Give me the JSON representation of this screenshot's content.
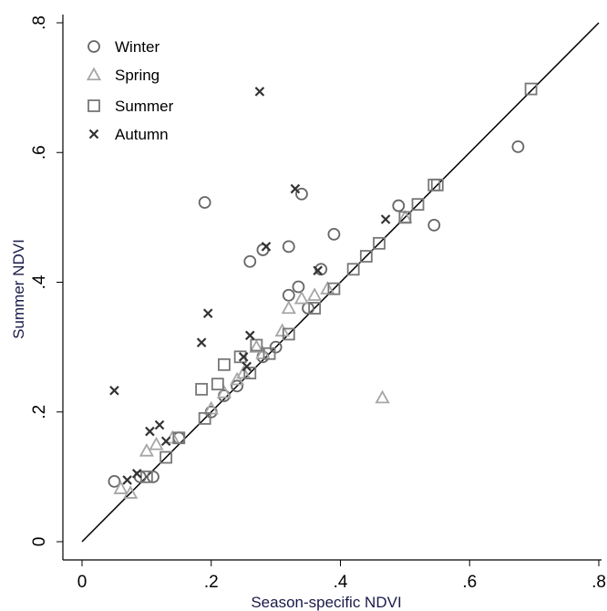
{
  "chart_data": {
    "type": "scatter",
    "xlabel": "Season-specific NDVI",
    "ylabel": "Summer NDVI",
    "xlim": [
      0,
      0.8
    ],
    "ylim": [
      0,
      0.8
    ],
    "x_ticks": [
      {
        "value": 0,
        "label": "0"
      },
      {
        "value": 0.2,
        "label": ".2"
      },
      {
        "value": 0.4,
        "label": ".4"
      },
      {
        "value": 0.6,
        "label": ".6"
      },
      {
        "value": 0.8,
        "label": ".8"
      }
    ],
    "y_ticks": [
      {
        "value": 0,
        "label": "0"
      },
      {
        "value": 0.2,
        "label": ".2"
      },
      {
        "value": 0.4,
        "label": ".4"
      },
      {
        "value": 0.6,
        "label": ".6"
      },
      {
        "value": 0.8,
        "label": ".8"
      }
    ],
    "grid": false,
    "legend_position": "top-left",
    "reference_line": {
      "from": [
        0,
        0
      ],
      "to": [
        0.8,
        0.8
      ],
      "color": "#000000"
    },
    "series": [
      {
        "name": "Winter",
        "marker": "circle",
        "color": "#666666",
        "points": [
          [
            0.05,
            0.093
          ],
          [
            0.19,
            0.523
          ],
          [
            0.26,
            0.432
          ],
          [
            0.28,
            0.45
          ],
          [
            0.32,
            0.455
          ],
          [
            0.335,
            0.393
          ],
          [
            0.34,
            0.536
          ],
          [
            0.39,
            0.474
          ],
          [
            0.49,
            0.518
          ],
          [
            0.545,
            0.488
          ],
          [
            0.675,
            0.609
          ],
          [
            0.32,
            0.38
          ],
          [
            0.37,
            0.42
          ],
          [
            0.35,
            0.36
          ],
          [
            0.3,
            0.3
          ],
          [
            0.24,
            0.24
          ],
          [
            0.2,
            0.2
          ],
          [
            0.11,
            0.1
          ],
          [
            0.09,
            0.1
          ],
          [
            0.15,
            0.16
          ],
          [
            0.22,
            0.225
          ],
          [
            0.28,
            0.285
          ]
        ]
      },
      {
        "name": "Spring",
        "marker": "triangle",
        "color": "#a6a6a6",
        "points": [
          [
            0.06,
            0.082
          ],
          [
            0.075,
            0.075
          ],
          [
            0.1,
            0.14
          ],
          [
            0.115,
            0.15
          ],
          [
            0.14,
            0.16
          ],
          [
            0.2,
            0.205
          ],
          [
            0.22,
            0.23
          ],
          [
            0.24,
            0.25
          ],
          [
            0.28,
            0.29
          ],
          [
            0.31,
            0.325
          ],
          [
            0.32,
            0.36
          ],
          [
            0.34,
            0.375
          ],
          [
            0.36,
            0.38
          ],
          [
            0.38,
            0.39
          ],
          [
            0.465,
            0.222
          ],
          [
            0.5,
            0.5
          ],
          [
            0.27,
            0.3
          ],
          [
            0.25,
            0.26
          ]
        ]
      },
      {
        "name": "Summer",
        "marker": "square",
        "color": "#777777",
        "points": [
          [
            0.1,
            0.1
          ],
          [
            0.13,
            0.13
          ],
          [
            0.15,
            0.16
          ],
          [
            0.185,
            0.235
          ],
          [
            0.21,
            0.243
          ],
          [
            0.22,
            0.273
          ],
          [
            0.245,
            0.285
          ],
          [
            0.27,
            0.303
          ],
          [
            0.29,
            0.29
          ],
          [
            0.32,
            0.32
          ],
          [
            0.36,
            0.36
          ],
          [
            0.39,
            0.39
          ],
          [
            0.42,
            0.42
          ],
          [
            0.44,
            0.44
          ],
          [
            0.46,
            0.46
          ],
          [
            0.5,
            0.5
          ],
          [
            0.52,
            0.52
          ],
          [
            0.545,
            0.55
          ],
          [
            0.695,
            0.698
          ],
          [
            0.55,
            0.55
          ],
          [
            0.19,
            0.19
          ],
          [
            0.26,
            0.26
          ]
        ]
      },
      {
        "name": "Autumn",
        "marker": "x",
        "color": "#333333",
        "points": [
          [
            0.05,
            0.233
          ],
          [
            0.07,
            0.095
          ],
          [
            0.085,
            0.105
          ],
          [
            0.105,
            0.17
          ],
          [
            0.12,
            0.18
          ],
          [
            0.13,
            0.155
          ],
          [
            0.185,
            0.307
          ],
          [
            0.195,
            0.352
          ],
          [
            0.25,
            0.285
          ],
          [
            0.255,
            0.27
          ],
          [
            0.26,
            0.318
          ],
          [
            0.275,
            0.694
          ],
          [
            0.285,
            0.455
          ],
          [
            0.33,
            0.544
          ],
          [
            0.365,
            0.418
          ],
          [
            0.47,
            0.497
          ]
        ]
      }
    ]
  }
}
